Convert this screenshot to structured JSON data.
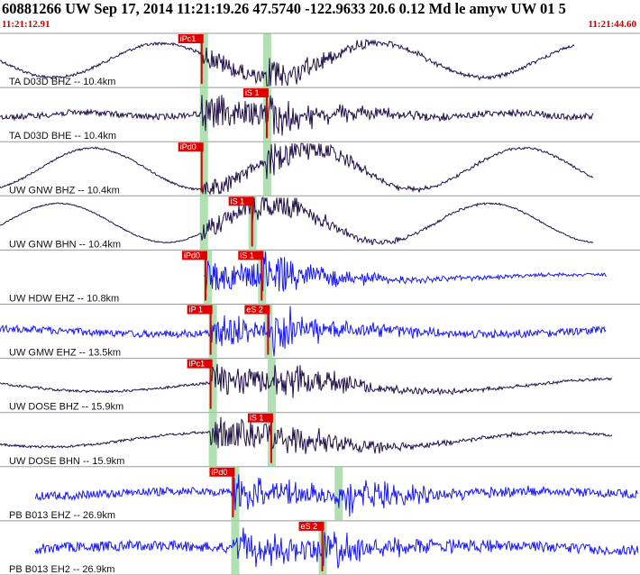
{
  "header": {
    "title": "60881266 UW Sep 17, 2014 11:21:19.26   47.5740 -122.9633 20.6 0.12 Md le amyw UW 01   5",
    "start_time": "11:21:12.91",
    "end_time": "11:21:44.60"
  },
  "colors": {
    "trace_dark": "#22104a",
    "trace_blue": "#1a1aee",
    "pick": "#e00000",
    "window": "#9fd89f",
    "grid": "#888888"
  },
  "picks_col1_window": [
    0.326,
    0.334
  ],
  "traces": [
    {
      "label": "TA D03D BHZ -- 10.4km",
      "color": "dark",
      "kind": "long",
      "amp": 0.7,
      "noise": 0.12,
      "start": 0.0,
      "end": 0.9,
      "p": 0.316,
      "s": 0.418,
      "picks": [
        {
          "text": "iPc1",
          "pos": 0.316
        }
      ]
    },
    {
      "label": "TA D03D BHE -- 10.4km",
      "color": "dark",
      "kind": "noise",
      "amp": 0.18,
      "noise": 0.25,
      "start": 0.0,
      "end": 0.93,
      "p": 0.316,
      "s": 0.418,
      "picks": [
        {
          "text": "iS 1",
          "pos": 0.418
        }
      ]
    },
    {
      "label": "UW GNW BHZ -- 10.4km",
      "color": "dark",
      "kind": "long",
      "amp": 0.85,
      "noise": 0.08,
      "start": 0.0,
      "end": 0.93,
      "p": 0.316,
      "s": 0.418,
      "picks": [
        {
          "text": "iPd0",
          "pos": 0.316
        }
      ]
    },
    {
      "label": "UW GNW BHN -- 10.4km",
      "color": "dark",
      "kind": "long",
      "amp": 0.8,
      "noise": 0.05,
      "start": 0.0,
      "end": 0.93,
      "p": 0.316,
      "s": 0.395,
      "picks": [
        {
          "text": "iS 1",
          "pos": 0.395
        }
      ]
    },
    {
      "label": "UW HDW EHZ -- 10.8km",
      "color": "blue",
      "kind": "burst",
      "amp": 0.1,
      "noise": 0.12,
      "start": 0.32,
      "end": 0.95,
      "p": 0.322,
      "s": 0.41,
      "picks": [
        {
          "text": "iPd0",
          "pos": 0.322
        },
        {
          "text": "iS 1",
          "pos": 0.41
        }
      ]
    },
    {
      "label": "UW GMW EHZ -- 13.5km",
      "color": "blue",
      "kind": "burst",
      "amp": 0.12,
      "noise": 0.3,
      "start": 0.0,
      "end": 0.95,
      "p": 0.33,
      "s": 0.42,
      "picks": [
        {
          "text": "iP 1",
          "pos": 0.33
        },
        {
          "text": "eS 2",
          "pos": 0.42
        }
      ]
    },
    {
      "label": "UW DOSE BHZ -- 15.9km",
      "color": "dark",
      "kind": "burst",
      "amp": 0.25,
      "noise": 0.1,
      "start": 0.0,
      "end": 0.96,
      "p": 0.33,
      "s": 0.425,
      "picks": [
        {
          "text": "iPc1",
          "pos": 0.33
        }
      ]
    },
    {
      "label": "UW DOSE BHN -- 15.9km",
      "color": "dark",
      "kind": "burst",
      "amp": 0.3,
      "noise": 0.1,
      "start": 0.0,
      "end": 0.96,
      "p": 0.33,
      "s": 0.425,
      "picks": [
        {
          "text": "iS 1",
          "pos": 0.425
        }
      ]
    },
    {
      "label": "PB B013 EHZ -- 26.9km",
      "color": "blue",
      "kind": "burst",
      "amp": 0.1,
      "noise": 0.35,
      "start": 0.055,
      "end": 1.0,
      "p": 0.365,
      "s": 0.53,
      "picks": [
        {
          "text": "iPd0",
          "pos": 0.365
        }
      ]
    },
    {
      "label": "PB B013 EH2 -- 26.9km",
      "color": "blue",
      "kind": "burst",
      "amp": 0.1,
      "noise": 0.42,
      "start": 0.055,
      "end": 1.0,
      "p": 0.365,
      "s": 0.505,
      "picks": [
        {
          "text": "eS 2",
          "pos": 0.505
        }
      ]
    }
  ]
}
